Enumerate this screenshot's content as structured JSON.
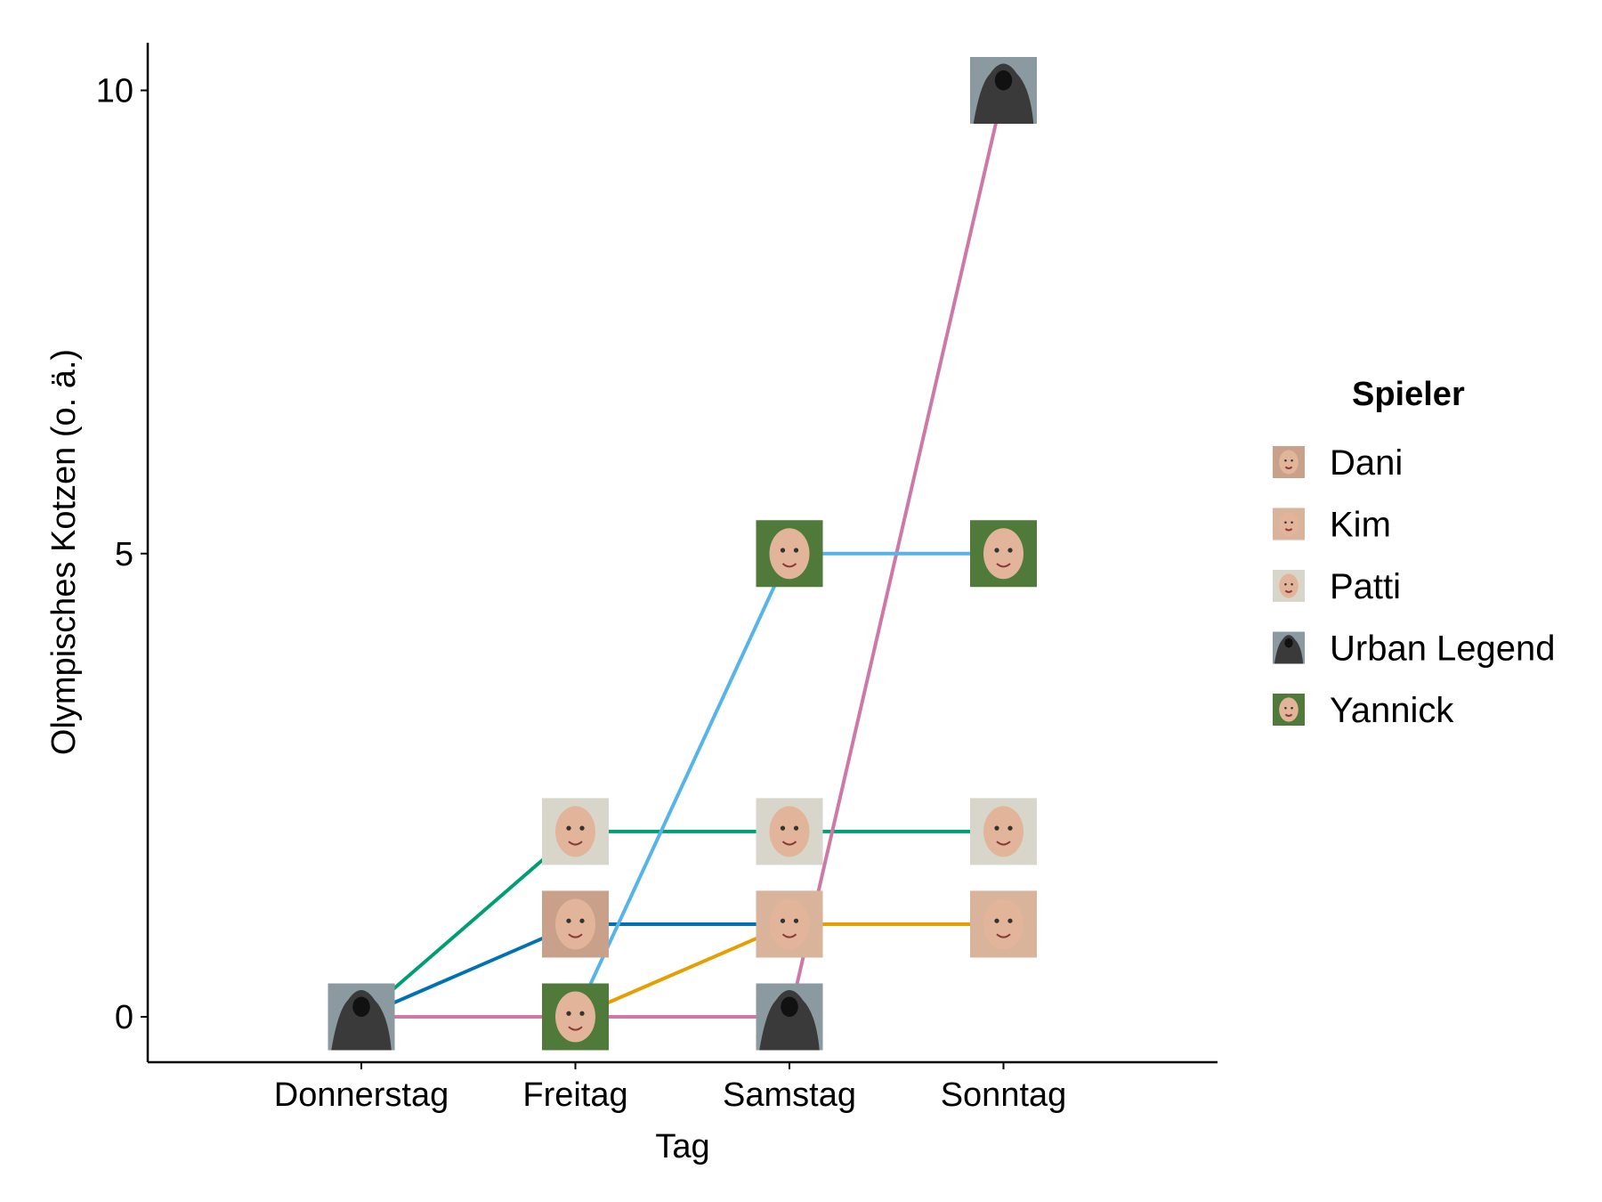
{
  "chart_data": {
    "type": "line",
    "title": "",
    "xlabel": "Tag",
    "ylabel": "Olympisches Kotzen (o. ä.)",
    "categories": [
      "Donnerstag",
      "Freitag",
      "Samstag",
      "Sonntag"
    ],
    "yticks": [
      0,
      5,
      10
    ],
    "ylim": [
      -0.5,
      10.5
    ],
    "grid": false,
    "legend": {
      "title": "Spieler",
      "placement": "right"
    },
    "series": [
      {
        "name": "Dani",
        "color": "#0072B2",
        "face": "#c9a08a",
        "values": [
          0,
          1,
          1,
          null
        ]
      },
      {
        "name": "Kim",
        "color": "#E69F00",
        "face": "#d9b39a",
        "values": [
          null,
          0,
          1,
          1
        ]
      },
      {
        "name": "Patti",
        "color": "#009E73",
        "face": "#d8d6cb",
        "values": [
          0,
          2,
          2,
          2
        ]
      },
      {
        "name": "Urban Legend",
        "color": "#CC79A7",
        "face": "#3a3a3a",
        "values": [
          0,
          0,
          0,
          10
        ]
      },
      {
        "name": "Yannick",
        "color": "#56B4E9",
        "face": "#4f7a3a",
        "values": [
          null,
          0,
          5,
          5
        ]
      }
    ]
  }
}
